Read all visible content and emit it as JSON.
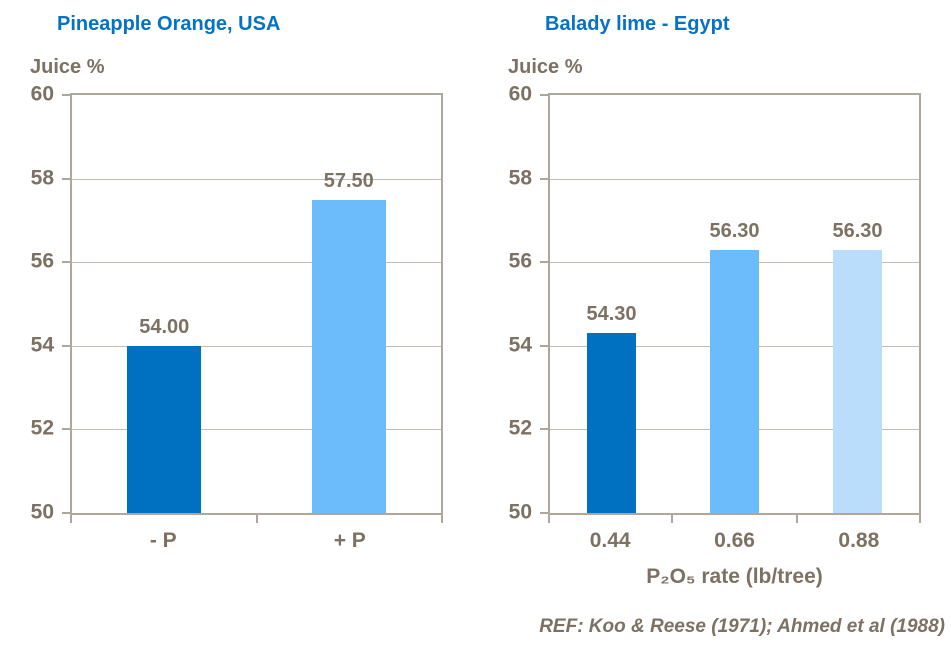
{
  "ref_text": "REF: Koo & Reese (1971); Ahmed et al (1988)",
  "colors": {
    "title_blue": "#0572C4",
    "axis_text_brown": "#7D7163",
    "plot_border_tan": "#B0A79C",
    "gridline_tan": "#C4BCB1",
    "bar_dark_blue": "#0070C0",
    "bar_light_blue": "#6CBBFA",
    "bar_pale_blue": "#BBDDFC"
  },
  "chart_data": [
    {
      "type": "bar",
      "title": "Pineapple Orange, USA",
      "ylabel": "Juice %",
      "xlabel": "",
      "ylim": [
        50,
        60
      ],
      "yticks": [
        50,
        52,
        54,
        56,
        58,
        60
      ],
      "grid": true,
      "legend_position": "none",
      "categories": [
        "- P",
        "+ P"
      ],
      "values": [
        54.0,
        57.5
      ],
      "value_labels": [
        "54.00",
        "57.50"
      ],
      "bar_colors": [
        "#0070C0",
        "#6CBBFA"
      ]
    },
    {
      "type": "bar",
      "title": "Balady lime - Egypt",
      "ylabel": "Juice %",
      "xlabel": "P₂O₅ rate (lb/tree)",
      "ylim": [
        50,
        60
      ],
      "yticks": [
        50,
        52,
        54,
        56,
        58,
        60
      ],
      "grid": true,
      "legend_position": "none",
      "categories": [
        "0.44",
        "0.66",
        "0.88"
      ],
      "values": [
        54.3,
        56.3,
        56.3
      ],
      "value_labels": [
        "54.30",
        "56.30",
        "56.30"
      ],
      "bar_colors": [
        "#0070C0",
        "#6CBBFA",
        "#BBDDFC"
      ]
    }
  ]
}
